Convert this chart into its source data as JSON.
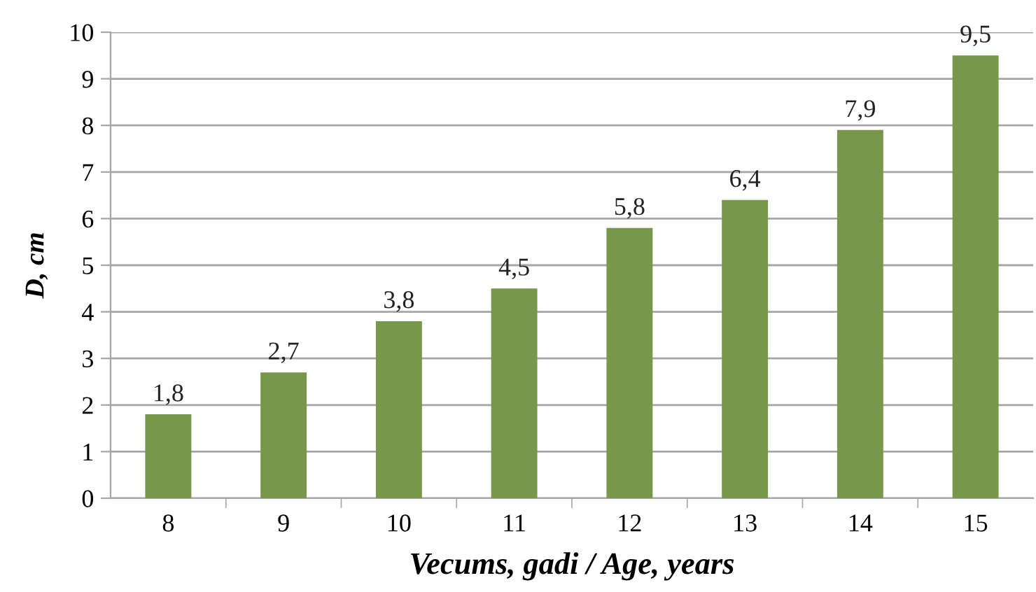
{
  "chart_data": {
    "type": "bar",
    "xlabel": "Vecums, gadi / Age, years",
    "ylabel": "D, cm",
    "categories": [
      "8",
      "9",
      "10",
      "11",
      "12",
      "13",
      "14",
      "15"
    ],
    "values": [
      1.8,
      2.7,
      3.8,
      4.5,
      5.8,
      6.4,
      7.9,
      9.5
    ],
    "value_labels": [
      "1,8",
      "2,7",
      "3,8",
      "4,5",
      "5,8",
      "6,4",
      "7,9",
      "9,5"
    ],
    "color": "#77984b",
    "ylim": [
      0,
      10
    ],
    "yticks": [
      0,
      1,
      2,
      3,
      4,
      5,
      6,
      7,
      8,
      9,
      10
    ],
    "grid": "y"
  }
}
